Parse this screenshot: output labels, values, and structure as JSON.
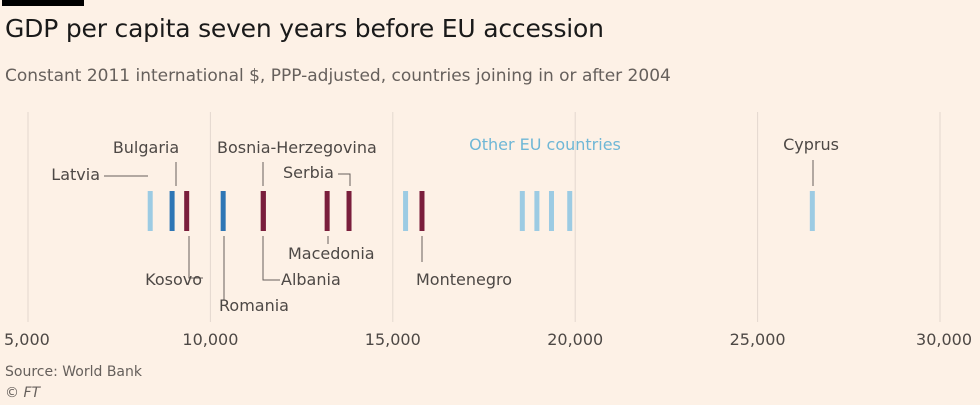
{
  "colors": {
    "background": "#fdf1e6",
    "grid": "#e3d8cf",
    "eu": "#9ccbe3",
    "highlight_eu": "#2e76b5",
    "non_eu": "#7a1e3c",
    "label_text": "#4d4845",
    "other_eu_label": "#6fb7d6",
    "leader": "#66605c"
  },
  "title": "GDP per capita seven years before EU accession",
  "subtitle": "Constant 2011 international $, PPP-adjusted, countries joining in or after 2004",
  "source": "Source: World Bank",
  "credit": "© FT",
  "chart_data": {
    "type": "strip",
    "title": "GDP per capita seven years before EU accession",
    "subtitle": "Constant 2011 international $, PPP-adjusted, countries joining in or after 2004",
    "xlim": [
      5000,
      30000
    ],
    "ticks": [
      {
        "value": 5000,
        "label": "5,000"
      },
      {
        "value": 10000,
        "label": "10,000"
      },
      {
        "value": 15000,
        "label": "15,000"
      },
      {
        "value": 20000,
        "label": "20,000"
      },
      {
        "value": 25000,
        "label": "25,000"
      },
      {
        "value": 30000,
        "label": "30,000"
      }
    ],
    "series_label": "Other EU countries",
    "points": [
      {
        "name": "Latvia",
        "value": 8350,
        "group": "eu",
        "labelled": true
      },
      {
        "name": "Bulgaria",
        "value": 8950,
        "group": "highlight_eu",
        "labelled": true
      },
      {
        "name": "Kosovo",
        "value": 9350,
        "group": "non_eu",
        "labelled": true
      },
      {
        "name": "Romania",
        "value": 10350,
        "group": "highlight_eu",
        "labelled": true
      },
      {
        "name": "Bosnia-Herzegovina",
        "value": 11450,
        "group": "non_eu",
        "labelled": true
      },
      {
        "name": "Albania",
        "value": 11450,
        "group": "non_eu",
        "labelled": true
      },
      {
        "name": "Macedonia",
        "value": 13200,
        "group": "non_eu",
        "labelled": true
      },
      {
        "name": "Serbia",
        "value": 13800,
        "group": "non_eu",
        "labelled": true
      },
      {
        "name": "",
        "value": 15350,
        "group": "eu",
        "labelled": false
      },
      {
        "name": "Montenegro",
        "value": 15800,
        "group": "non_eu",
        "labelled": true
      },
      {
        "name": "",
        "value": 18550,
        "group": "eu",
        "labelled": false
      },
      {
        "name": "",
        "value": 18950,
        "group": "eu",
        "labelled": false
      },
      {
        "name": "",
        "value": 19350,
        "group": "eu",
        "labelled": false
      },
      {
        "name": "",
        "value": 19850,
        "group": "eu",
        "labelled": false
      },
      {
        "name": "Cyprus",
        "value": 26500,
        "group": "eu",
        "labelled": true
      }
    ]
  }
}
